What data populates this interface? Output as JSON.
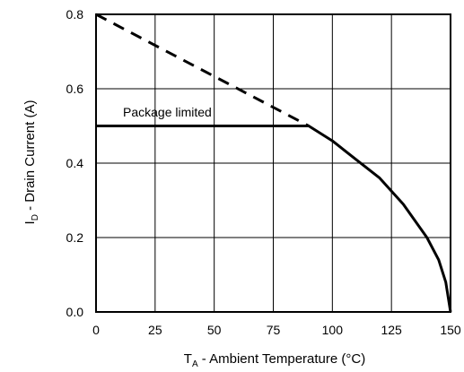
{
  "chart_data": {
    "type": "line",
    "xlabel_main": "T",
    "xlabel_sub": "A",
    "xlabel_rest": " - Ambient Temperature (°C)",
    "ylabel_main": "I",
    "ylabel_sub": "D",
    "ylabel_rest": " - Drain Current (A)",
    "xlim": [
      0,
      150
    ],
    "ylim": [
      0,
      0.8
    ],
    "x_ticks": [
      0,
      25,
      50,
      75,
      100,
      125,
      150
    ],
    "x_tick_labels": [
      "0",
      "25",
      "50",
      "75",
      "100",
      "125",
      "150"
    ],
    "y_ticks": [
      0,
      0.2,
      0.4,
      0.6,
      0.8
    ],
    "y_tick_labels": [
      "0.0",
      "0.2",
      "0.4",
      "0.6",
      "0.8"
    ],
    "grid": true,
    "annotation": "Package limited",
    "series": [
      {
        "style": "dashed",
        "x": [
          0,
          90
        ],
        "y": [
          0.8,
          0.5
        ]
      },
      {
        "style": "solid",
        "x": [
          0,
          90,
          100,
          110,
          120,
          130,
          140,
          145,
          148,
          150
        ],
        "y": [
          0.5,
          0.5,
          0.46,
          0.41,
          0.36,
          0.29,
          0.2,
          0.14,
          0.08,
          0.0
        ]
      }
    ]
  }
}
